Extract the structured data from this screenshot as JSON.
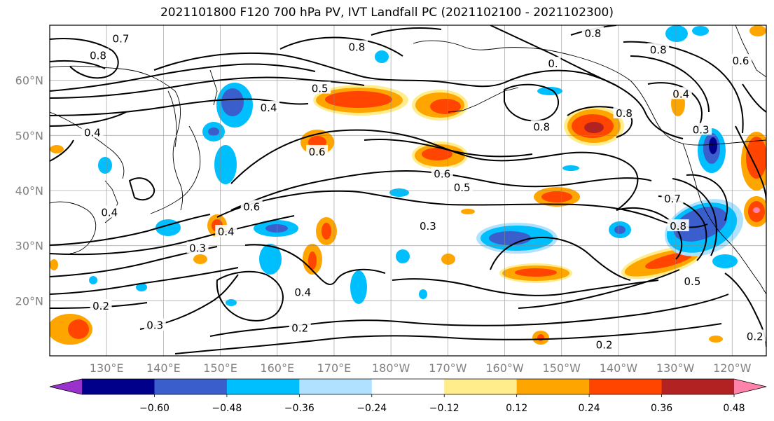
{
  "title": "2021101800 F120 700 hPa PV, IVT Landfall PC (2021102100 - 2021102300)",
  "map": {
    "projection": "equirectangular",
    "lon_range": [
      120,
      246
    ],
    "lat_range": [
      10,
      70
    ],
    "grid": true,
    "lat_ticks": [
      {
        "lat": 20,
        "label": "20°N"
      },
      {
        "lat": 30,
        "label": "30°N"
      },
      {
        "lat": 40,
        "label": "40°N"
      },
      {
        "lat": 50,
        "label": "50°N"
      },
      {
        "lat": 60,
        "label": "60°N"
      }
    ],
    "lon_ticks": [
      {
        "lon": 130,
        "label": "130°E"
      },
      {
        "lon": 140,
        "label": "140°E"
      },
      {
        "lon": 150,
        "label": "150°E"
      },
      {
        "lon": 160,
        "label": "160°E"
      },
      {
        "lon": 170,
        "label": "170°E"
      },
      {
        "lon": 180,
        "label": "180°W"
      },
      {
        "lon": 190,
        "label": "170°W"
      },
      {
        "lon": 200,
        "label": "160°W"
      },
      {
        "lon": 210,
        "label": "150°W"
      },
      {
        "lon": 220,
        "label": "140°W"
      },
      {
        "lon": 230,
        "label": "130°W"
      },
      {
        "lon": 240,
        "label": "120°W"
      }
    ]
  },
  "colorbar": {
    "colors": [
      "#9932cc",
      "#00008b",
      "#3a5fcd",
      "#00bfff",
      "#b0e2ff",
      "#ffffff",
      "#ffec8b",
      "#ffa500",
      "#ff4500",
      "#b22222",
      "#ff82ab"
    ],
    "ticks": [
      "−0.60",
      "−0.48",
      "−0.36",
      "−0.24",
      "−0.12",
      "0.12",
      "0.24",
      "0.36",
      "0.48",
      "0.60"
    ],
    "extend": "both"
  },
  "contour_labels": [
    {
      "text": "0.7",
      "lon": 132.5,
      "lat": 67.5
    },
    {
      "text": "0.8",
      "lon": 128.5,
      "lat": 64.5
    },
    {
      "text": "0.8",
      "lon": 174.0,
      "lat": 66.0
    },
    {
      "text": "0.8",
      "lon": 215.5,
      "lat": 68.5
    },
    {
      "text": "0.8",
      "lon": 227.0,
      "lat": 65.5
    },
    {
      "text": "0.6",
      "lon": 241.5,
      "lat": 63.5
    },
    {
      "text": "0.",
      "lon": 208.5,
      "lat": 63.0
    },
    {
      "text": "0.5",
      "lon": 167.5,
      "lat": 58.5
    },
    {
      "text": "0.4",
      "lon": 158.5,
      "lat": 55.0
    },
    {
      "text": "0.4",
      "lon": 127.5,
      "lat": 50.5
    },
    {
      "text": "0.4",
      "lon": 231.0,
      "lat": 57.5
    },
    {
      "text": "0.3",
      "lon": 234.5,
      "lat": 51.0
    },
    {
      "text": "0.8",
      "lon": 221.0,
      "lat": 54.0
    },
    {
      "text": "0.8",
      "lon": 206.5,
      "lat": 51.5
    },
    {
      "text": "0.6",
      "lon": 167.0,
      "lat": 47.0
    },
    {
      "text": "0.6",
      "lon": 189.0,
      "lat": 43.0
    },
    {
      "text": "0.5",
      "lon": 192.5,
      "lat": 40.5
    },
    {
      "text": "0.6",
      "lon": 155.5,
      "lat": 37.0
    },
    {
      "text": "0.4",
      "lon": 130.5,
      "lat": 36.0
    },
    {
      "text": "0.4",
      "lon": 151.0,
      "lat": 32.5
    },
    {
      "text": "0.3",
      "lon": 146.0,
      "lat": 29.5
    },
    {
      "text": "0.3",
      "lon": 186.5,
      "lat": 33.5
    },
    {
      "text": "0.7",
      "lon": 229.5,
      "lat": 38.5
    },
    {
      "text": "0.8",
      "lon": 230.5,
      "lat": 33.5
    },
    {
      "text": "0.5",
      "lon": 233.0,
      "lat": 23.5
    },
    {
      "text": "0.4",
      "lon": 164.5,
      "lat": 21.5
    },
    {
      "text": "0.2",
      "lon": 129.0,
      "lat": 19.0
    },
    {
      "text": "0.3",
      "lon": 138.5,
      "lat": 15.5
    },
    {
      "text": "0.2",
      "lon": 164.0,
      "lat": 15.0
    },
    {
      "text": "0.2",
      "lon": 217.5,
      "lat": 12.0
    },
    {
      "text": "0.2",
      "lon": 244.0,
      "lat": 13.5
    }
  ]
}
